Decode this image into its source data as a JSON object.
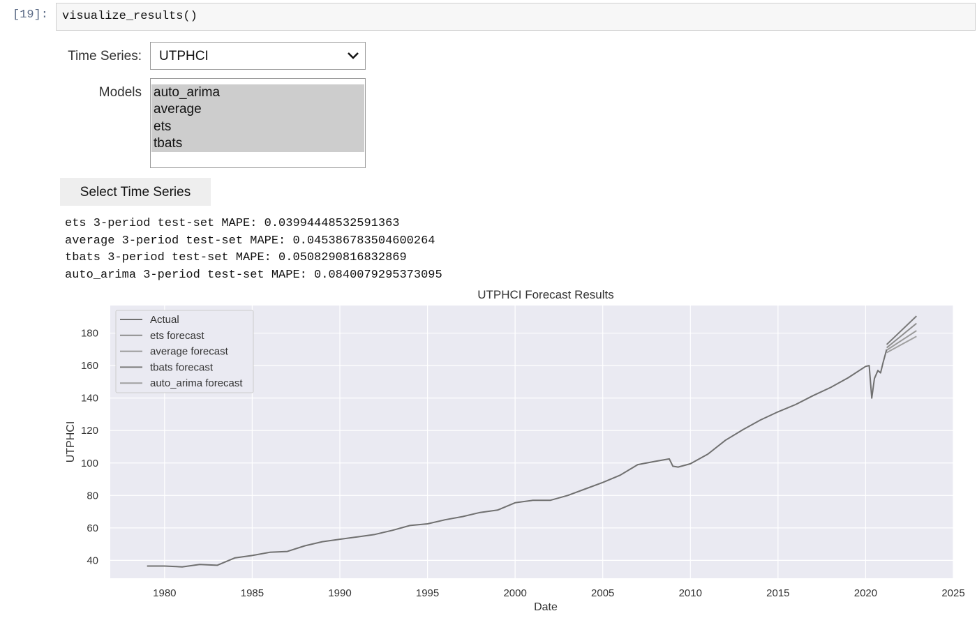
{
  "cell": {
    "prompt": "[19]:",
    "code": "visualize_results()"
  },
  "widgets": {
    "time_series_label": "Time Series:",
    "time_series_value": "UTPHCI",
    "models_label": "Models",
    "model_options": [
      "auto_arima",
      "average",
      "ets",
      "tbats"
    ],
    "button_label": "Select Time Series"
  },
  "output": {
    "lines": [
      "ets 3-period test-set MAPE: 0.03994448532591363",
      "average 3-period test-set MAPE: 0.045386783504600264",
      "tbats 3-period test-set MAPE: 0.0508290816832869",
      "auto_arima 3-period test-set MAPE: 0.0840079295373095"
    ]
  },
  "chart_data": {
    "type": "line",
    "title": "UTPHCI Forecast Results",
    "xlabel": "Date",
    "ylabel": "UTPHCI",
    "xlim": [
      1976.9,
      2025.0
    ],
    "ylim": [
      29,
      197
    ],
    "xticks": [
      1980,
      1985,
      1990,
      1995,
      2000,
      2005,
      2010,
      2015,
      2020,
      2025
    ],
    "yticks": [
      40,
      60,
      80,
      100,
      120,
      140,
      160,
      180
    ],
    "grid": true,
    "legend_position": "top-left",
    "colors": {
      "background": "#eaeaf2",
      "grid": "#ffffff",
      "actual": "#707070",
      "ets": "#8c8c8c",
      "average": "#9a9a9a",
      "tbats": "#7a7a7a",
      "auto_arima": "#a0a0a0"
    },
    "series": [
      {
        "name": "Actual",
        "x": [
          1979.0,
          1980.0,
          1981.0,
          1982.0,
          1983.0,
          1984.0,
          1985.0,
          1986.0,
          1987.0,
          1988.0,
          1989.0,
          1990.0,
          1991.0,
          1992.0,
          1993.0,
          1994.0,
          1995.0,
          1996.0,
          1997.0,
          1998.0,
          1999.0,
          2000.0,
          2001.0,
          2002.0,
          2003.0,
          2004.0,
          2005.0,
          2006.0,
          2007.0,
          2008.0,
          2008.8,
          2009.0,
          2009.3,
          2010.0,
          2011.0,
          2012.0,
          2013.0,
          2014.0,
          2015.0,
          2016.0,
          2017.0,
          2018.0,
          2019.0,
          2020.0,
          2020.2,
          2020.35,
          2020.5,
          2020.7,
          2020.85,
          2021.0,
          2021.2
        ],
        "values": [
          36.5,
          36.5,
          36.0,
          37.5,
          37.0,
          41.5,
          43.0,
          45.0,
          45.5,
          49.0,
          51.5,
          53.0,
          54.5,
          56.0,
          58.5,
          61.5,
          62.5,
          65.0,
          67.0,
          69.5,
          71.0,
          75.5,
          77.0,
          77.0,
          80.0,
          84.0,
          88.0,
          92.5,
          99.0,
          101.0,
          102.5,
          98.0,
          97.5,
          99.5,
          105.5,
          114.0,
          120.5,
          126.5,
          131.5,
          136.0,
          141.5,
          146.5,
          152.5,
          159.5,
          160.0,
          140.0,
          152.0,
          157.0,
          155.5,
          162.0,
          170.0
        ]
      },
      {
        "name": "ets forecast",
        "x": [
          2021.2,
          2022.9
        ],
        "values": [
          171.0,
          186.0
        ]
      },
      {
        "name": "average forecast",
        "x": [
          2021.2,
          2022.9
        ],
        "values": [
          169.5,
          181.5
        ]
      },
      {
        "name": "tbats forecast",
        "x": [
          2021.2,
          2022.9
        ],
        "values": [
          173.0,
          190.5
        ]
      },
      {
        "name": "auto_arima forecast",
        "x": [
          2021.2,
          2022.9
        ],
        "values": [
          168.0,
          178.0
        ]
      }
    ]
  }
}
